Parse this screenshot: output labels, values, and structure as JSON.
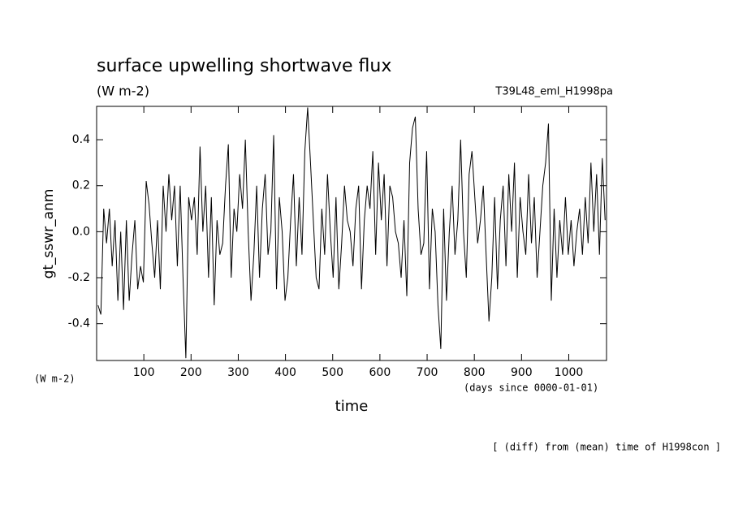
{
  "chart_data": {
    "type": "line",
    "title": "surface upwelling shortwave flux",
    "subtitle": "(W m-2)",
    "annotation_right": "T39L48_eml_H1998pa",
    "ylabel": "gt_sswr_anm",
    "xlabel": "time",
    "yunits": "(W m-2)",
    "xunits": "(days since 0000-01-01)",
    "footnote": "[ (diff) from (mean) time of H1998con ]",
    "x": [
      3,
      9,
      15,
      21,
      27,
      33,
      39,
      45,
      51,
      57,
      63,
      69,
      75,
      81,
      87,
      93,
      99,
      105,
      111,
      117,
      123,
      129,
      135,
      141,
      147,
      153,
      159,
      165,
      171,
      177,
      183,
      189,
      195,
      201,
      207,
      213,
      219,
      225,
      231,
      237,
      243,
      249,
      255,
      261,
      267,
      273,
      279,
      285,
      291,
      297,
      303,
      309,
      315,
      321,
      327,
      333,
      339,
      345,
      351,
      357,
      363,
      369,
      375,
      381,
      387,
      393,
      399,
      405,
      411,
      417,
      423,
      429,
      435,
      441,
      447,
      453,
      459,
      465,
      471,
      477,
      483,
      489,
      495,
      501,
      507,
      513,
      519,
      525,
      531,
      537,
      543,
      549,
      555,
      561,
      567,
      573,
      579,
      585,
      591,
      597,
      603,
      609,
      615,
      621,
      627,
      633,
      639,
      645,
      651,
      657,
      663,
      669,
      675,
      681,
      687,
      693,
      699,
      705,
      711,
      717,
      723,
      729,
      735,
      741,
      747,
      753,
      759,
      765,
      771,
      777,
      783,
      789,
      795,
      801,
      807,
      813,
      819,
      825,
      831,
      837,
      843,
      849,
      855,
      861,
      867,
      873,
      879,
      885,
      891,
      897,
      903,
      909,
      915,
      921,
      927,
      933,
      939,
      945,
      951,
      957,
      963,
      969,
      975,
      981,
      987,
      993,
      999,
      1005,
      1011,
      1017,
      1023,
      1029,
      1035,
      1041,
      1047,
      1053,
      1059,
      1065,
      1071,
      1077
    ],
    "series": [
      {
        "color": "#000000",
        "values": [
          -0.32,
          -0.36,
          0.1,
          -0.05,
          0.1,
          -0.15,
          0.05,
          -0.3,
          0.0,
          -0.34,
          0.05,
          -0.3,
          -0.1,
          0.05,
          -0.25,
          -0.15,
          -0.22,
          0.22,
          0.12,
          -0.05,
          -0.2,
          0.05,
          -0.25,
          0.2,
          0.0,
          0.25,
          0.05,
          0.2,
          -0.15,
          0.2,
          -0.2,
          -0.55,
          0.15,
          0.05,
          0.15,
          -0.1,
          0.37,
          0.0,
          0.2,
          -0.2,
          0.15,
          -0.32,
          0.05,
          -0.1,
          -0.05,
          0.2,
          0.38,
          -0.2,
          0.1,
          0.0,
          0.25,
          0.1,
          0.4,
          0.0,
          -0.3,
          -0.1,
          0.2,
          -0.2,
          0.1,
          0.25,
          -0.1,
          0.0,
          0.42,
          -0.25,
          0.15,
          0.0,
          -0.3,
          -0.2,
          0.05,
          0.25,
          -0.15,
          0.15,
          -0.1,
          0.35,
          0.54,
          0.3,
          0.05,
          -0.2,
          -0.25,
          0.1,
          -0.1,
          0.25,
          0.0,
          -0.2,
          0.15,
          -0.25,
          -0.05,
          0.2,
          0.05,
          0.0,
          -0.15,
          0.1,
          0.2,
          -0.25,
          0.05,
          0.2,
          0.1,
          0.35,
          -0.1,
          0.3,
          0.05,
          0.25,
          -0.15,
          0.2,
          0.15,
          0.0,
          -0.05,
          -0.2,
          0.05,
          -0.28,
          0.3,
          0.45,
          0.5,
          0.1,
          -0.1,
          -0.05,
          0.35,
          -0.25,
          0.1,
          0.0,
          -0.32,
          -0.51,
          0.1,
          -0.3,
          0.0,
          0.2,
          -0.1,
          0.05,
          0.4,
          0.0,
          -0.2,
          0.25,
          0.35,
          0.15,
          -0.05,
          0.05,
          0.2,
          -0.1,
          -0.39,
          -0.2,
          0.15,
          -0.25,
          0.05,
          0.2,
          -0.15,
          0.25,
          0.0,
          0.3,
          -0.2,
          0.15,
          0.0,
          -0.1,
          0.25,
          -0.05,
          0.15,
          -0.2,
          0.0,
          0.2,
          0.3,
          0.47,
          -0.3,
          0.1,
          -0.2,
          0.05,
          -0.1,
          0.15,
          -0.1,
          0.05,
          -0.15,
          0.0,
          0.1,
          -0.1,
          0.15,
          -0.05,
          0.3,
          0.0,
          0.25,
          -0.1,
          0.32,
          0.05
        ]
      }
    ],
    "xlim": [
      0,
      1080
    ],
    "xticks": [
      100,
      200,
      300,
      400,
      500,
      600,
      700,
      800,
      900,
      1000
    ],
    "ylim": [
      -0.56,
      0.545
    ],
    "yticks": [
      -0.4,
      -0.2,
      {
        "value": 0,
        "label": "0.0"
      },
      0.2,
      0.4
    ],
    "grid": false
  }
}
